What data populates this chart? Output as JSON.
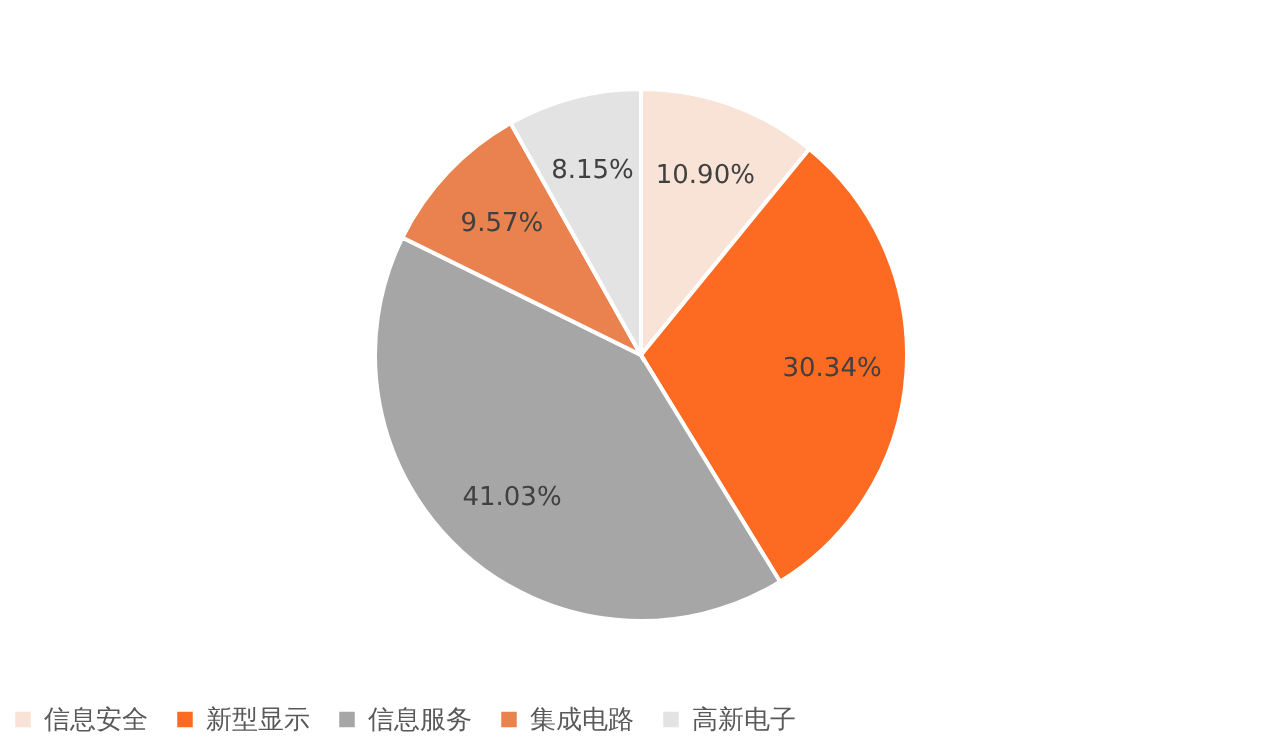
{
  "chart_data": {
    "type": "pie",
    "categories": [
      "信息安全",
      "新型显示",
      "信息服务",
      "集成电路",
      "高新电子"
    ],
    "values": [
      10.9,
      30.34,
      41.03,
      9.57,
      8.15
    ],
    "value_labels": [
      "10.90%",
      "30.34%",
      "41.03%",
      "9.57%",
      "8.15%"
    ],
    "colors": [
      "#f9e2d6",
      "#fd6b22",
      "#a6a6a6",
      "#e9824f",
      "#e3e3e3"
    ],
    "legend": "bottom"
  }
}
